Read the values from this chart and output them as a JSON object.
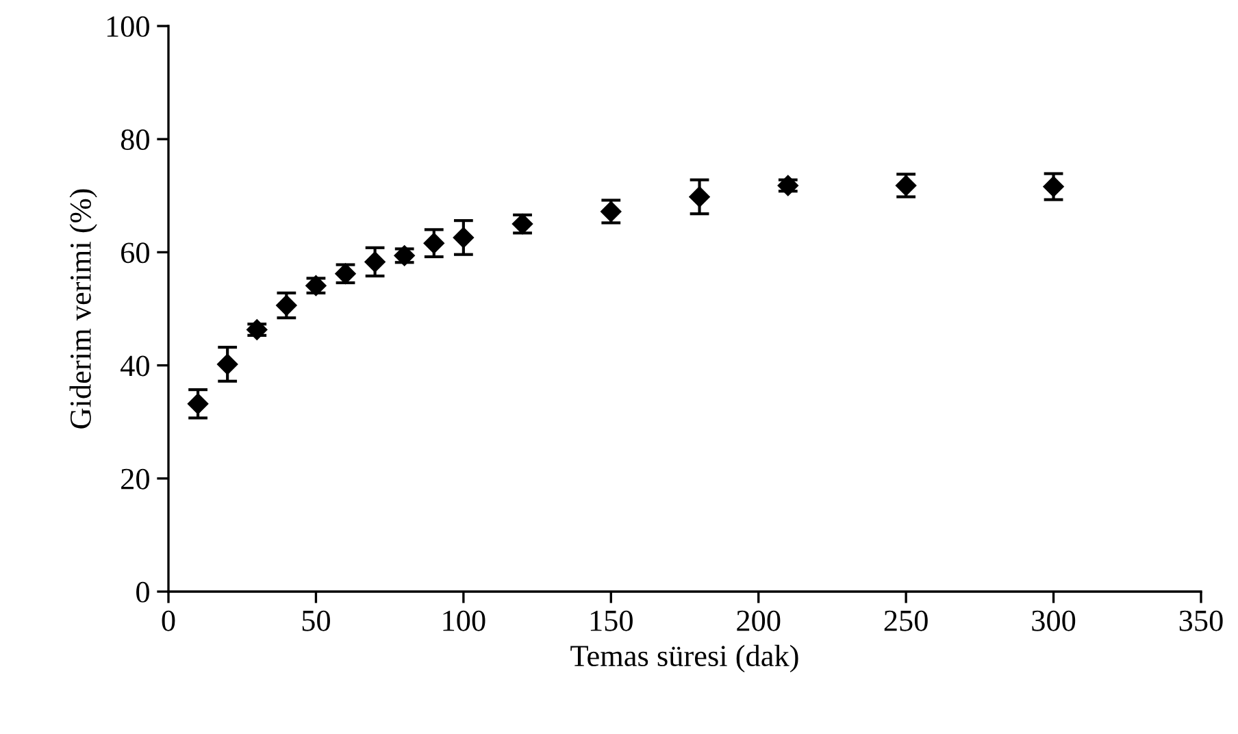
{
  "chart_data": {
    "type": "scatter",
    "xlabel": "Temas süresi (dak)",
    "ylabel": "Giderim verimi (%)",
    "x": [
      10,
      20,
      30,
      40,
      50,
      60,
      70,
      80,
      90,
      100,
      120,
      150,
      180,
      210,
      250,
      300
    ],
    "values": [
      33.2,
      40.2,
      46.3,
      50.6,
      54.1,
      56.2,
      58.3,
      59.4,
      61.6,
      62.6,
      65.0,
      67.2,
      69.8,
      71.8,
      71.8,
      71.6
    ],
    "errors": [
      2.5,
      3,
      1,
      2.2,
      1.3,
      1.6,
      2.5,
      1.2,
      2.4,
      3,
      1.6,
      2,
      3,
      1,
      2,
      2.3
    ],
    "color": "#000000",
    "marker": "diamond",
    "xlim": [
      0,
      350
    ],
    "xticks": [
      0,
      50,
      100,
      150,
      200,
      250,
      300,
      350
    ],
    "ylim": [
      0,
      100
    ],
    "yticks": [
      0,
      20,
      40,
      60,
      80,
      100
    ],
    "grid": false,
    "legend": false
  }
}
